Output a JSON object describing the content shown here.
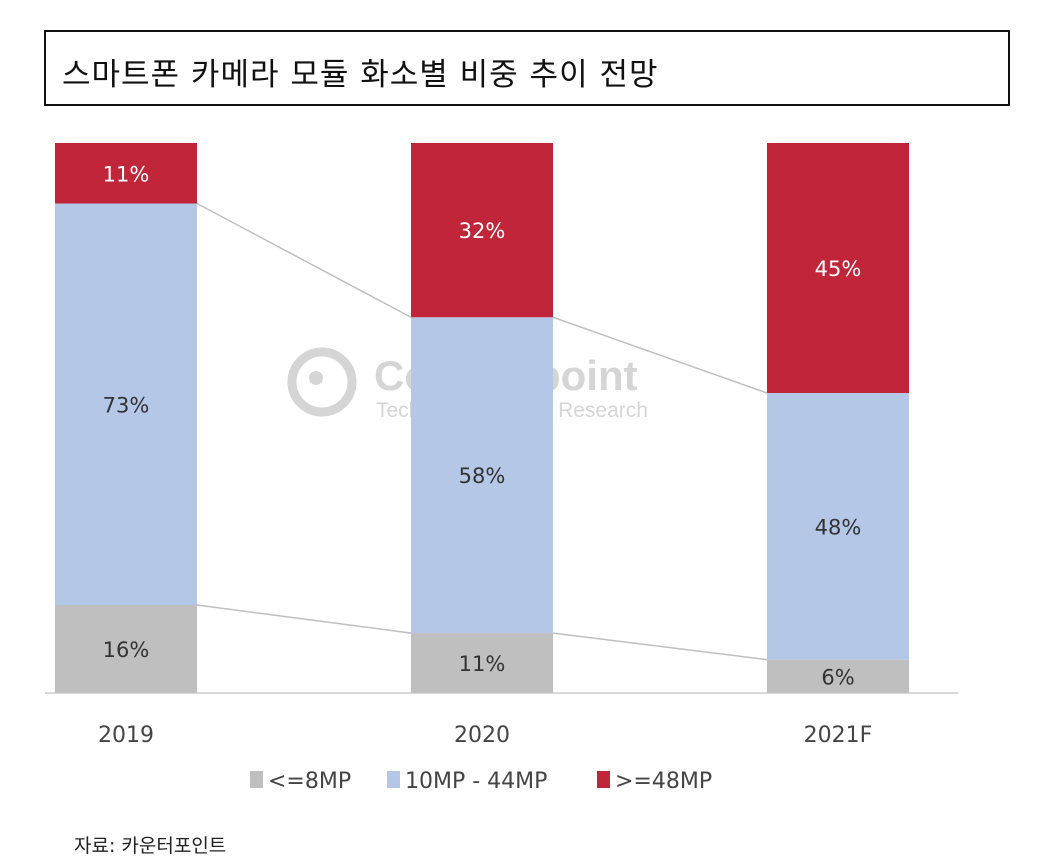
{
  "chart_data": {
    "type": "stacked-bar",
    "title": "스마트폰 카메라 모듈 화소별 비중 추이 전망",
    "categories": [
      "2019",
      "2020",
      "2021F"
    ],
    "series": [
      {
        "name": "<=8MP",
        "color": "#bfbfbf",
        "values": [
          16,
          11,
          6
        ]
      },
      {
        "name": "10MP - 44MP",
        "color": "#b4c7e7",
        "values": [
          73,
          58,
          48
        ]
      },
      {
        "name": ">=48MP",
        "color": "#c0253a",
        "values": [
          11,
          32,
          45
        ]
      }
    ],
    "value_format": "%",
    "ylim": [
      0,
      100
    ],
    "grid": false,
    "legend_position": "bottom",
    "connector_lines": true
  },
  "watermark": {
    "name": "Counterpoint",
    "tagline": "Technology Market Research"
  },
  "source": "자료: 카운터포인트"
}
